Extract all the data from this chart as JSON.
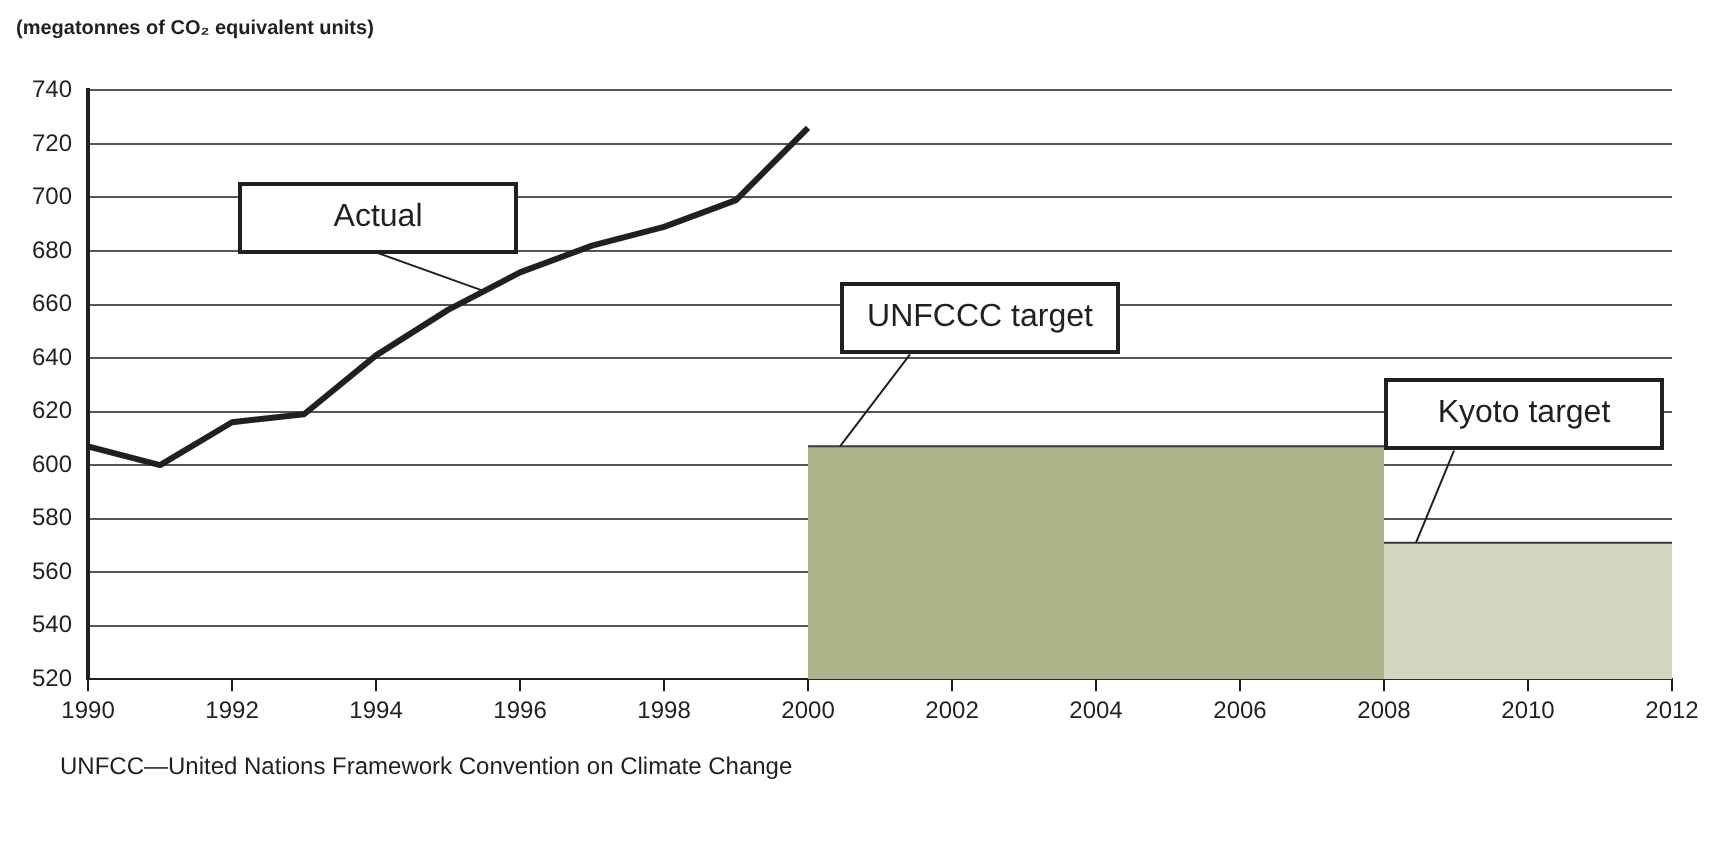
{
  "chart_data": {
    "type": "line",
    "title": "(megatonnes of CO₂ equivalent units)",
    "series": [
      {
        "name": "Actual",
        "color": "#231f20",
        "x": [
          1990,
          1991,
          1992,
          1993,
          1994,
          1995,
          1996,
          1997,
          1998,
          1999,
          2000
        ],
        "values": [
          607,
          600,
          616,
          619,
          641,
          658,
          672,
          682,
          689,
          699,
          726
        ]
      },
      {
        "name": "UNFCCC target",
        "type": "area",
        "color": "#abb48a",
        "x": [
          2000,
          2008
        ],
        "values": [
          607,
          607
        ]
      },
      {
        "name": "Kyoto target",
        "type": "area",
        "color": "#d3d6bf",
        "x": [
          2008,
          2012
        ],
        "values": [
          571,
          571
        ]
      }
    ],
    "xlim": [
      1990,
      2012
    ],
    "xticks": [
      1990,
      1992,
      1994,
      1996,
      1998,
      2000,
      2002,
      2004,
      2006,
      2008,
      2010,
      2012
    ],
    "ylim": [
      520,
      740
    ],
    "yticks": [
      520,
      540,
      560,
      580,
      600,
      620,
      640,
      660,
      680,
      700,
      720,
      740
    ],
    "grid": "y",
    "legend": false,
    "annotations": [
      "UNFCC—United Nations Framework Convention on Climate Change"
    ]
  }
}
